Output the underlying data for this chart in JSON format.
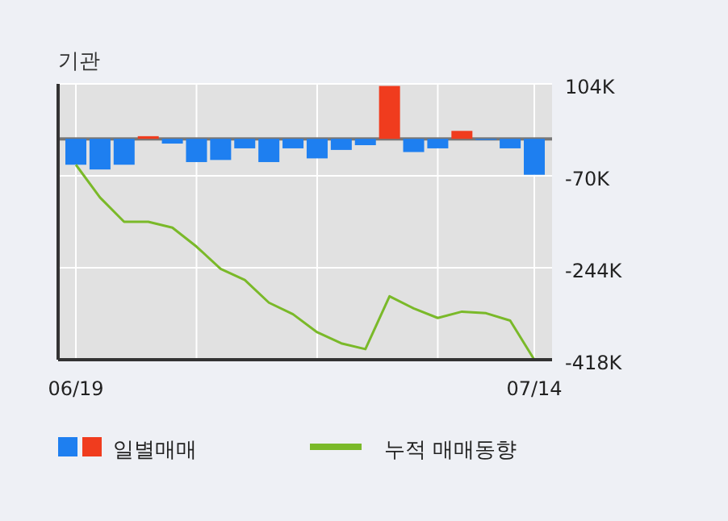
{
  "chart_data": {
    "type": "bar",
    "title": "기관",
    "categories": [
      "06/19",
      null,
      null,
      null,
      null,
      null,
      null,
      null,
      null,
      null,
      null,
      null,
      null,
      null,
      null,
      null,
      null,
      null,
      null,
      "07/14"
    ],
    "series": [
      {
        "name": "일별매매",
        "colors": [
          "#1e7ff0",
          "#1e7ff0",
          "#1e7ff0",
          "#f03c1e",
          "#1e7ff0",
          "#1e7ff0",
          "#1e7ff0",
          "#1e7ff0",
          "#1e7ff0",
          "#1e7ff0",
          "#1e7ff0",
          "#1e7ff0",
          "#1e7ff0",
          "#f03c1e",
          "#1e7ff0",
          "#1e7ff0",
          "#f03c1e",
          "#1e7ff0",
          "#1e7ff0",
          "#1e7ff0"
        ],
        "values": [
          -49,
          -58,
          -49,
          5,
          -9,
          -44,
          -40,
          -18,
          -44,
          -18,
          -37,
          -21,
          -12,
          100,
          -25,
          -18,
          15,
          -2,
          -18,
          -68
        ]
      },
      {
        "name": "누적 매매동향",
        "type": "line",
        "color": "#7ab929",
        "values": [
          -49,
          -111,
          -157,
          -157,
          -168,
          -204,
          -246,
          -267,
          -310,
          -332,
          -366,
          -387,
          -398,
          -298,
          -321,
          -339,
          -327,
          -330,
          -344,
          -418
        ]
      }
    ],
    "ylim": [
      -418,
      104
    ],
    "yticks": [
      {
        "value": 104,
        "label": "104K"
      },
      {
        "value": -70,
        "label": "-70K"
      },
      {
        "value": -244,
        "label": "-244K"
      },
      {
        "value": -418,
        "label": "-418K"
      }
    ],
    "grid": true,
    "legend": "bottom"
  }
}
